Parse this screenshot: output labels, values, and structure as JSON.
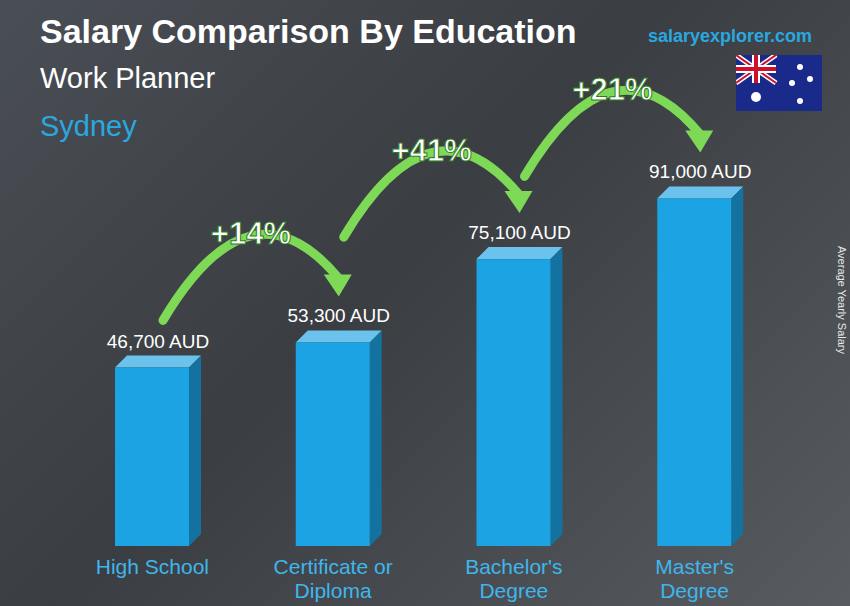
{
  "chart_data": {
    "type": "bar",
    "title": "Salary Comparison By Education",
    "subtitle": "Work Planner",
    "location": "Sydney",
    "source": "salaryexplorer.com",
    "ylabel": "Average Yearly Salary",
    "categories": [
      "High School",
      "Certificate or Diploma",
      "Bachelor's Degree",
      "Master's Degree"
    ],
    "values": [
      46700,
      53300,
      75100,
      91000
    ],
    "value_labels": [
      "46,700 AUD",
      "53,300 AUD",
      "75,100 AUD",
      "91,000 AUD"
    ],
    "data_labels": true,
    "annotations": [
      "+14%",
      "+41%",
      "+21%"
    ],
    "color": "#1ba3e3",
    "ylim": [
      0,
      100000
    ],
    "yticks": [
      0,
      100000
    ],
    "grid": false,
    "tick_labels": "x"
  }
}
